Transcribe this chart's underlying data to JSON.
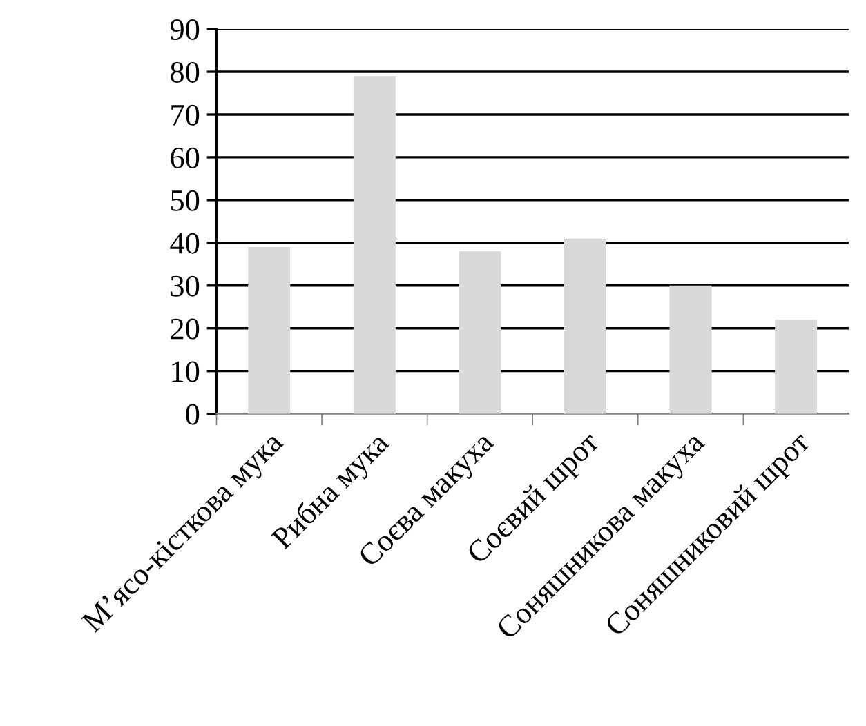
{
  "chart_data": {
    "type": "bar",
    "categories": [
      "М’ясо-кісткова мука",
      "Рибна мука",
      "Соєва макуха",
      "Соєвий шрот",
      "Соняшникова макуха",
      "Соняшниковий шрот"
    ],
    "values": [
      39,
      79,
      38,
      41,
      30,
      22
    ],
    "color": "#d9d9d9",
    "ylim": [
      0,
      90
    ],
    "yticks": [
      0,
      10,
      20,
      30,
      40,
      50,
      60,
      70,
      80,
      90
    ],
    "grid": "y"
  }
}
